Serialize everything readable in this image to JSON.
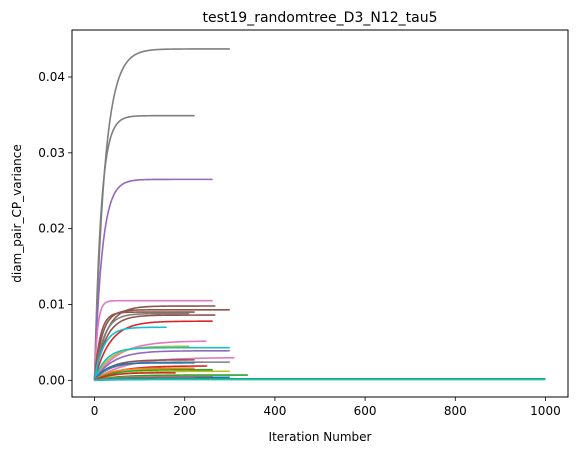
{
  "chart_data": {
    "type": "line",
    "title": "test19_randomtree_D3_N12_tau5",
    "xlabel": "Iteration Number",
    "ylabel": "diam_pair_CP_variance",
    "xlim": [
      -50,
      1050
    ],
    "ylim": [
      -0.0022,
      0.0462
    ],
    "xticks": [
      0,
      200,
      400,
      600,
      800,
      1000
    ],
    "xtick_labels": [
      "0",
      "200",
      "400",
      "600",
      "800",
      "1000"
    ],
    "yticks": [
      0.0,
      0.01,
      0.02,
      0.03,
      0.04
    ],
    "ytick_labels": [
      "0.00",
      "0.01",
      "0.02",
      "0.03",
      "0.04"
    ],
    "grid": false,
    "legend": "none",
    "series": [
      {
        "color": "#7f7f7f",
        "plateau": 0.0437,
        "end": 300,
        "k": 0.045
      },
      {
        "color": "#7f7f7f",
        "plateau": 0.0349,
        "end": 222,
        "k": 0.07
      },
      {
        "color": "#9467bd",
        "plateau": 0.0265,
        "end": 262,
        "k": 0.06
      },
      {
        "color": "#e377c2",
        "plateau": 0.0105,
        "end": 262,
        "k": 0.15
      },
      {
        "color": "#8c564b",
        "plateau": 0.0098,
        "end": 268,
        "k": 0.04
      },
      {
        "color": "#8c564b",
        "plateau": 0.0093,
        "end": 300,
        "k": 0.06
      },
      {
        "color": "#8c564b",
        "plateau": 0.009,
        "end": 222,
        "k": 0.08
      },
      {
        "color": "#7f7f7f",
        "plateau": 0.0088,
        "end": 210,
        "k": 0.05
      },
      {
        "color": "#8c564b",
        "plateau": 0.0086,
        "end": 268,
        "k": 0.04
      },
      {
        "color": "#d62728",
        "plateau": 0.0078,
        "end": 262,
        "k": 0.03
      },
      {
        "color": "#17becf",
        "plateau": 0.007,
        "end": 160,
        "k": 0.05
      },
      {
        "color": "#e377c2",
        "plateau": 0.0052,
        "end": 248,
        "k": 0.02
      },
      {
        "color": "#bcbd22",
        "plateau": 0.0045,
        "end": 210,
        "k": 0.03
      },
      {
        "color": "#17becf",
        "plateau": 0.0043,
        "end": 300,
        "k": 0.04
      },
      {
        "color": "#9467bd",
        "plateau": 0.0039,
        "end": 300,
        "k": 0.025
      },
      {
        "color": "#e377c2",
        "plateau": 0.003,
        "end": 310,
        "k": 0.015
      },
      {
        "color": "#8c564b",
        "plateau": 0.0027,
        "end": 222,
        "k": 0.03
      },
      {
        "color": "#7f7f7f",
        "plateau": 0.0024,
        "end": 300,
        "k": 0.03
      },
      {
        "color": "#1f77b4",
        "plateau": 0.0023,
        "end": 222,
        "k": 0.04
      },
      {
        "color": "#d62728",
        "plateau": 0.0019,
        "end": 250,
        "k": 0.02
      },
      {
        "color": "#ff7f0e",
        "plateau": 0.0016,
        "end": 222,
        "k": 0.03
      },
      {
        "color": "#2ca02c",
        "plateau": 0.0014,
        "end": 262,
        "k": 0.025
      },
      {
        "color": "#bcbd22",
        "plateau": 0.0012,
        "end": 300,
        "k": 0.02
      },
      {
        "color": "#d62728",
        "plateau": 0.001,
        "end": 180,
        "k": 0.03
      },
      {
        "color": "#2ca02c",
        "plateau": 0.0007,
        "end": 340,
        "k": 0.02
      },
      {
        "color": "#ff7f0e",
        "plateau": 0.0005,
        "end": 262,
        "k": 0.02
      },
      {
        "color": "#1f77b4",
        "plateau": 0.0004,
        "end": 300,
        "k": 0.02
      },
      {
        "color": "#9467bd",
        "plateau": 0.0003,
        "end": 222,
        "k": 0.02
      },
      {
        "color": "#2ca02c",
        "plateau": 0.0002,
        "end": 1000,
        "k": 0.02
      },
      {
        "color": "#17becf",
        "plateau": 0.0001,
        "end": 1000,
        "k": 0.02
      }
    ]
  }
}
